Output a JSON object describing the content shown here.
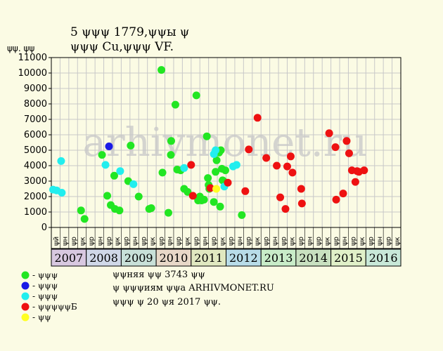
{
  "header": {
    "title_line1": "5 ψψψ 1779,ψψы ψ",
    "title_line2": "ψψψ Cu,ψψψ VF."
  },
  "watermark": "arhivmonet.ru",
  "info": {
    "line1": "ψψняя ψψ 3743 ψψ",
    "line2": "ψ ψψψиям ψψа ARHIVMONET.RU",
    "line3": "ψψψ ψ 20 ψя 2017 ψψ."
  },
  "legend": [
    {
      "label": "- ψψψ",
      "color": "#22e622"
    },
    {
      "label": "- ψψψ",
      "color": "#1a1ae6"
    },
    {
      "label": "- ψψψ",
      "color": "#22eeee"
    },
    {
      "label": "- ψψψψψБ",
      "color": "#ee1111"
    },
    {
      "label": "- ψψ",
      "color": "#ffff22"
    }
  ],
  "chart_data": {
    "type": "scatter",
    "ylabel": "ψψ. ψψ",
    "ylim": [
      0,
      11000
    ],
    "yticks": [
      0,
      1000,
      2000,
      3000,
      4000,
      5000,
      6000,
      7000,
      8000,
      9000,
      10000,
      11000
    ],
    "x_start": 2007,
    "x_end": 2017,
    "grid": true,
    "years": [
      {
        "label": "2007",
        "color": "#d8c8e0"
      },
      {
        "label": "2008",
        "color": "#d0d8e8"
      },
      {
        "label": "2009",
        "color": "#c8e0d8"
      },
      {
        "label": "2010",
        "color": "#e8d8c8"
      },
      {
        "label": "2011",
        "color": "#e0e8c0"
      },
      {
        "label": "2012",
        "color": "#b8dce8"
      },
      {
        "label": "2013",
        "color": "#c8ecc8"
      },
      {
        "label": "2014",
        "color": "#c8e0c0"
      },
      {
        "label": "2015",
        "color": "#e0f0c8"
      },
      {
        "label": "2016",
        "color": "#c8e8d8"
      }
    ],
    "quarter_labels": [
      "ψй",
      "ψн",
      "ψр",
      "ψк",
      "ψр",
      "ψн",
      "ψр",
      "ψк",
      "ψр",
      "ψн",
      "ψр",
      "ψк",
      "ψр",
      "ψн",
      "ψр",
      "ψк",
      "ψр",
      "ψн",
      "ψр",
      "ψк",
      "ψр",
      "ψн",
      "ψр",
      "ψк",
      "ψр",
      "ψн",
      "ψр",
      "ψк",
      "ψр",
      "ψн",
      "ψр",
      "ψк",
      "ψр",
      "ψн",
      "ψр",
      "ψк",
      "ψр",
      "ψн",
      "ψр",
      "ψк"
    ],
    "series": [
      {
        "color": "#22e622",
        "points": [
          [
            2007.85,
            1100
          ],
          [
            2007.95,
            550
          ],
          [
            2008.45,
            4700
          ],
          [
            2008.6,
            2050
          ],
          [
            2008.7,
            1450
          ],
          [
            2008.8,
            3350
          ],
          [
            2008.82,
            1200
          ],
          [
            2008.95,
            1100
          ],
          [
            2009.2,
            3000
          ],
          [
            2009.27,
            5300
          ],
          [
            2009.5,
            2000
          ],
          [
            2009.8,
            1200
          ],
          [
            2009.86,
            1250
          ],
          [
            2010.15,
            10200
          ],
          [
            2010.18,
            3550
          ],
          [
            2010.35,
            950
          ],
          [
            2010.42,
            4700
          ],
          [
            2010.43,
            5600
          ],
          [
            2010.55,
            7950
          ],
          [
            2010.6,
            3750
          ],
          [
            2010.7,
            3700
          ],
          [
            2010.8,
            2500
          ],
          [
            2010.9,
            2300
          ],
          [
            2011.15,
            8550
          ],
          [
            2011.2,
            1750
          ],
          [
            2011.25,
            2000
          ],
          [
            2011.3,
            1750
          ],
          [
            2011.37,
            1800
          ],
          [
            2011.45,
            5900
          ],
          [
            2011.48,
            3200
          ],
          [
            2011.5,
            2750
          ],
          [
            2011.52,
            2500
          ],
          [
            2011.65,
            1650
          ],
          [
            2011.7,
            3600
          ],
          [
            2011.73,
            4350
          ],
          [
            2011.8,
            4850
          ],
          [
            2011.83,
            1350
          ],
          [
            2011.85,
            5000
          ],
          [
            2011.88,
            3800
          ],
          [
            2011.9,
            3050
          ],
          [
            2011.93,
            3000
          ],
          [
            2011.98,
            3700
          ],
          [
            2012.45,
            800
          ]
        ]
      },
      {
        "color": "#1a1ae6",
        "points": [
          [
            2008.65,
            5250
          ]
        ]
      },
      {
        "color": "#22eeee",
        "points": [
          [
            2007.05,
            2450
          ],
          [
            2007.15,
            2400
          ],
          [
            2007.28,
            4300
          ],
          [
            2007.3,
            2250
          ],
          [
            2008.55,
            4050
          ],
          [
            2008.97,
            3650
          ],
          [
            2009.35,
            2800
          ],
          [
            2010.8,
            3850
          ],
          [
            2011.65,
            4750
          ],
          [
            2011.7,
            5000
          ],
          [
            2011.95,
            2650
          ],
          [
            2012.2,
            3950
          ],
          [
            2012.3,
            4050
          ]
        ]
      },
      {
        "color": "#ee1111",
        "points": [
          [
            2011.0,
            4050
          ],
          [
            2011.05,
            2050
          ],
          [
            2011.55,
            2550
          ],
          [
            2012.05,
            2900
          ],
          [
            2012.55,
            2350
          ],
          [
            2012.65,
            5050
          ],
          [
            2012.9,
            7100
          ],
          [
            2013.15,
            4500
          ],
          [
            2013.45,
            4000
          ],
          [
            2013.55,
            1950
          ],
          [
            2013.7,
            1200
          ],
          [
            2013.75,
            3950
          ],
          [
            2013.85,
            4600
          ],
          [
            2013.9,
            3550
          ],
          [
            2014.15,
            2500
          ],
          [
            2014.17,
            1550
          ],
          [
            2014.95,
            6100
          ],
          [
            2015.13,
            5200
          ],
          [
            2015.15,
            1800
          ],
          [
            2015.35,
            2200
          ],
          [
            2015.45,
            5600
          ],
          [
            2015.52,
            4800
          ],
          [
            2015.6,
            3700
          ],
          [
            2015.7,
            2950
          ],
          [
            2015.75,
            3650
          ],
          [
            2015.8,
            3600
          ],
          [
            2015.95,
            3700
          ]
        ]
      },
      {
        "color": "#ffff22",
        "points": [
          [
            2011.72,
            2500
          ]
        ]
      }
    ]
  }
}
